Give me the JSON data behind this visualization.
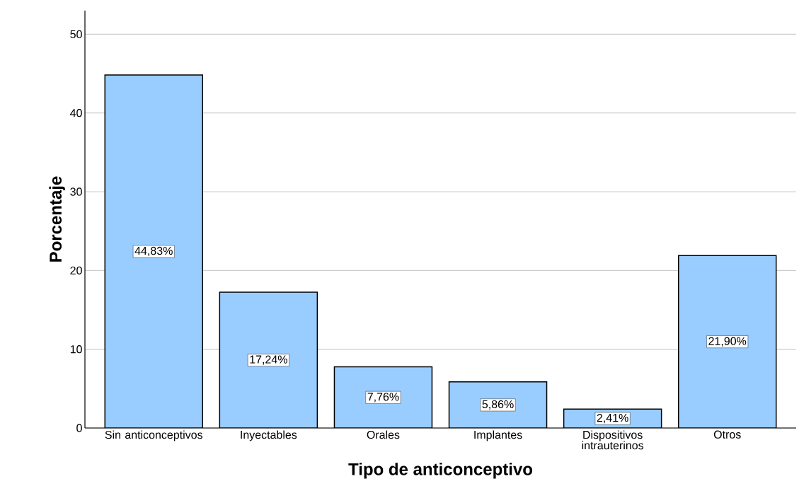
{
  "chart_data": {
    "type": "bar",
    "xlabel": "Tipo de anticonceptivo",
    "ylabel": "Porcentaje",
    "categories": [
      "Sin anticonceptivos",
      "Inyectables",
      "Orales",
      "Implantes",
      "Dispositivos intrauterinos",
      "Otros"
    ],
    "values": [
      44.83,
      17.24,
      7.76,
      5.86,
      2.41,
      21.9
    ],
    "value_labels": [
      "44,83%",
      "17,24%",
      "7,76%",
      "5,86%",
      "2,41%",
      "21,90%"
    ],
    "color": "#99ccff",
    "ylim": [
      0,
      53
    ],
    "yticks": [
      0,
      10,
      20,
      30,
      40,
      50
    ],
    "grid": "y"
  }
}
